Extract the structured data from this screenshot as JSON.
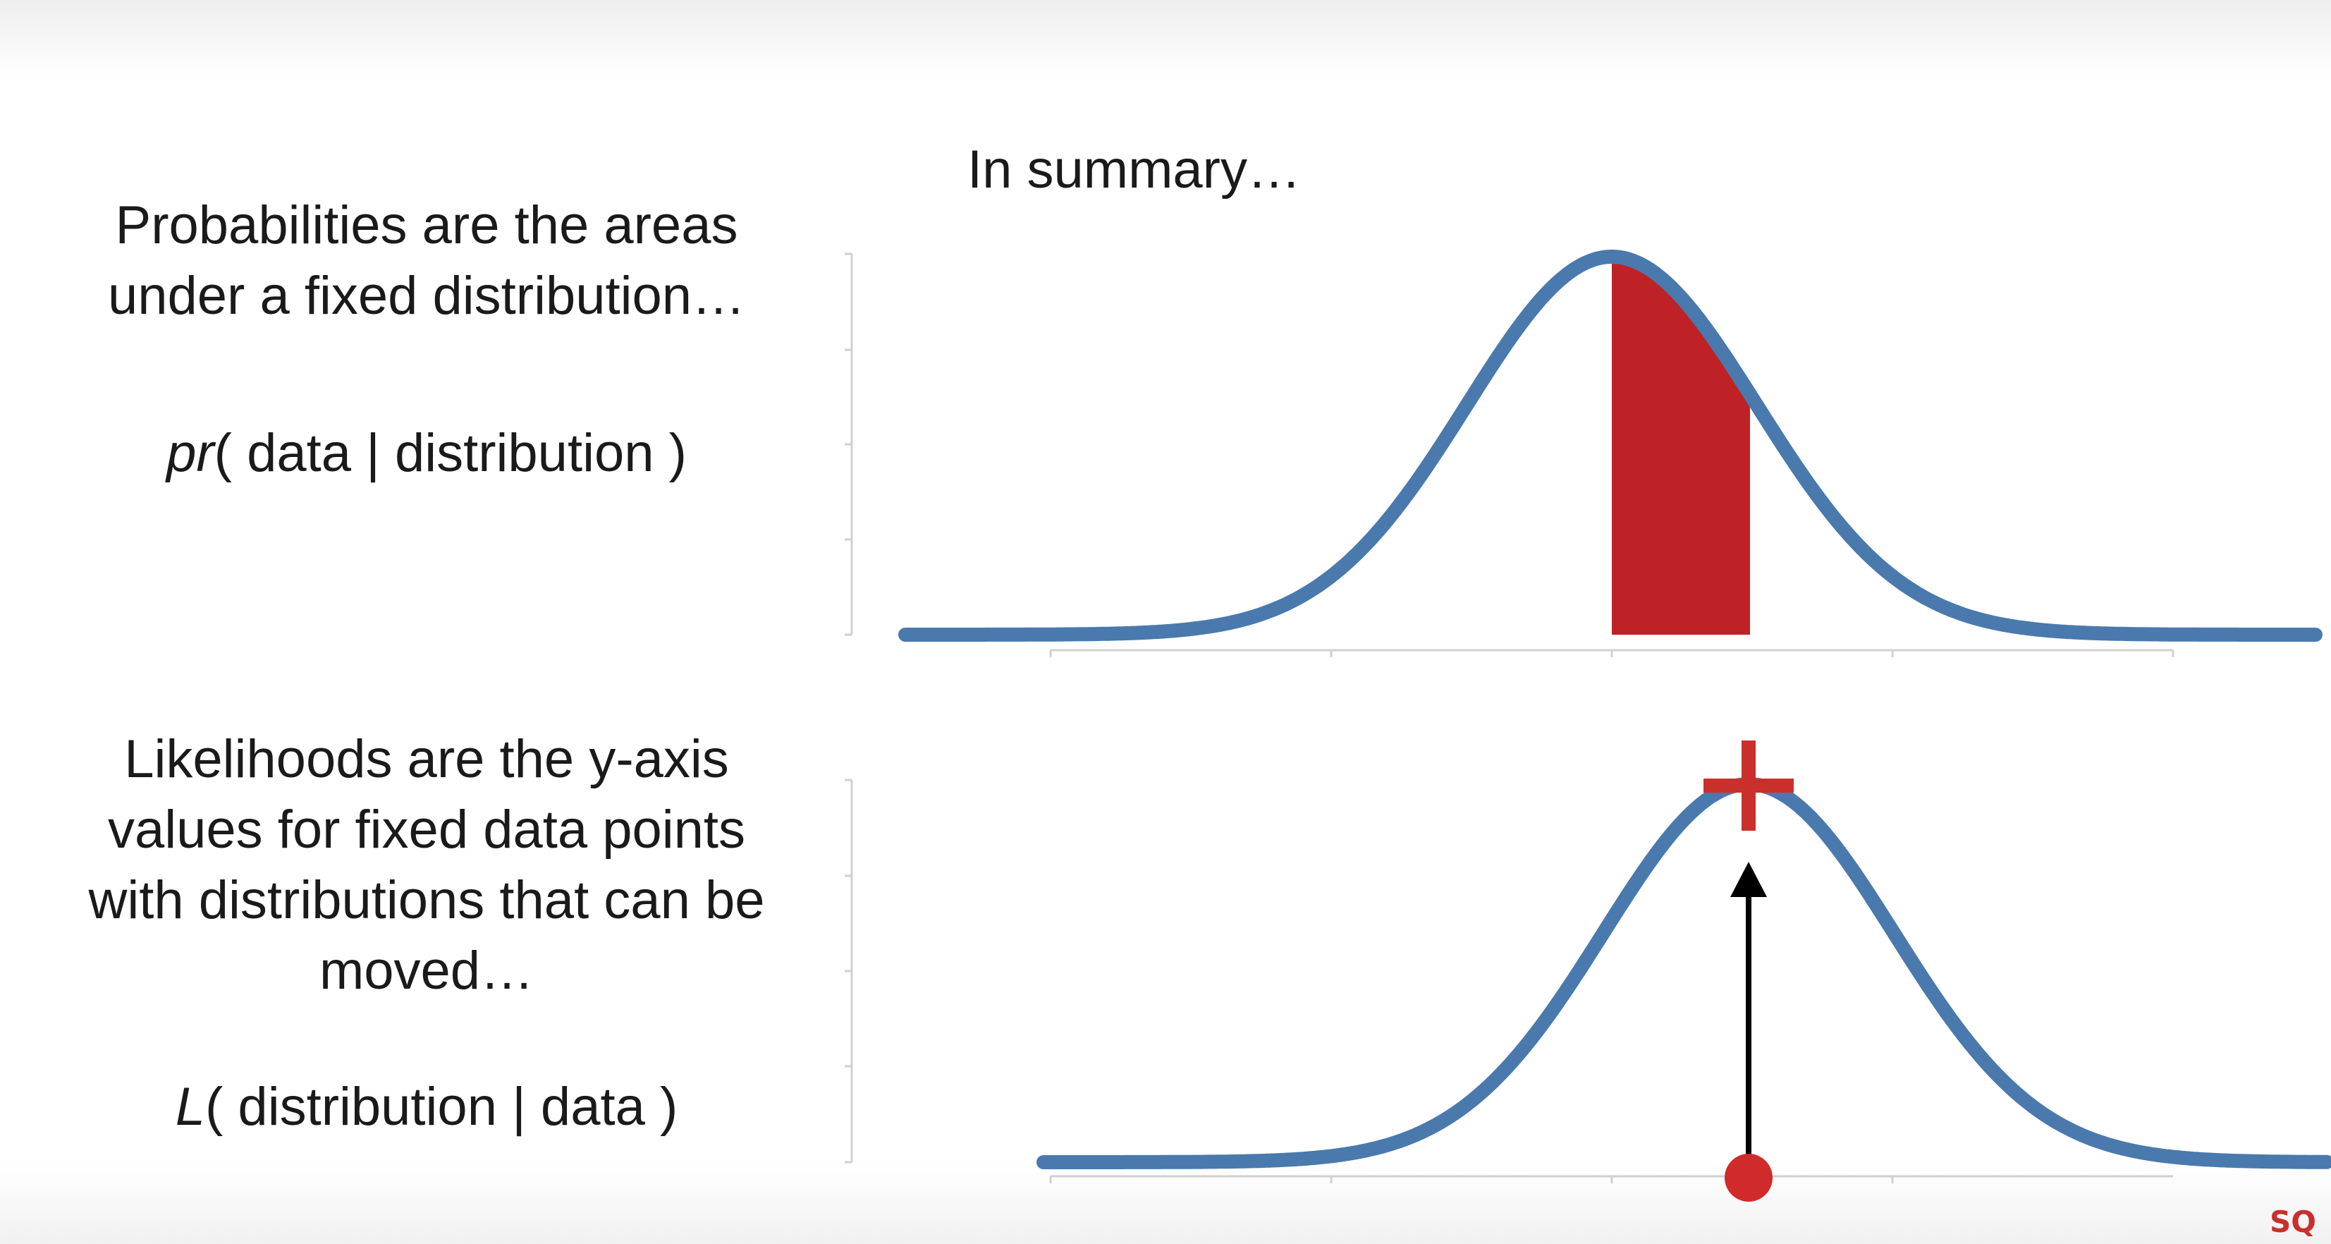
{
  "title": "In summary…",
  "probability": {
    "text_lines": [
      "Probabilities are the areas",
      "under a fixed distribution…"
    ],
    "formula_fn": "pr",
    "formula_args": "( data | distribution )"
  },
  "likelihood": {
    "text_lines": [
      "Likelihoods are the y-axis",
      "values for fixed data points",
      "with distributions that can be",
      "moved…"
    ],
    "formula_fn": "L",
    "formula_args": "( distribution | data )"
  },
  "colors": {
    "curve": "#4a79ae",
    "area": "#bf2226",
    "point": "#d02a2a",
    "arrow": "#000000",
    "axis": "#d0d0d0",
    "text": "#1a1a1a"
  },
  "logo": "SQ"
}
